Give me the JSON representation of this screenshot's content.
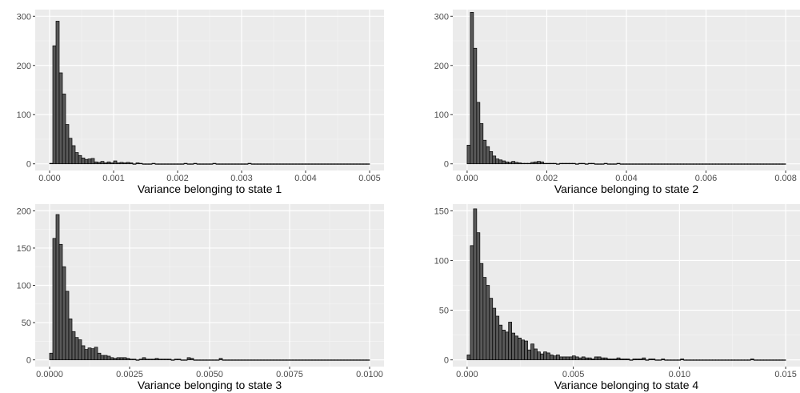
{
  "chart_data": [
    {
      "type": "bar",
      "xlabel": "Variance belonging to state 1",
      "ylabel": "",
      "xlim": [
        0,
        0.005
      ],
      "ylim": [
        0,
        300
      ],
      "x_ticks": [
        0,
        0.001,
        0.002,
        0.003,
        0.004,
        0.005
      ],
      "x_tick_labels": [
        "0.000",
        "0.001",
        "0.002",
        "0.003",
        "0.004",
        "0.005"
      ],
      "y_ticks": [
        0,
        100,
        200,
        300
      ],
      "y_tick_labels": [
        "0",
        "100",
        "200",
        "300"
      ],
      "bin_width": 5e-05,
      "bin_start": 0,
      "values": [
        1,
        240,
        290,
        185,
        142,
        80,
        52,
        37,
        23,
        17,
        12,
        9,
        10,
        11,
        4,
        3,
        5,
        2,
        4,
        2,
        6,
        2,
        3,
        2,
        3,
        2,
        0,
        2,
        1,
        0,
        0,
        0,
        1,
        0,
        0,
        0,
        0,
        0,
        0,
        0,
        0,
        0,
        1,
        0,
        0,
        1,
        0,
        0,
        0,
        0,
        0,
        1,
        0,
        0,
        0,
        0,
        0,
        0,
        0,
        0,
        0,
        0,
        1,
        0,
        0,
        0,
        0,
        0,
        0,
        0,
        0,
        0,
        0,
        0,
        0,
        0,
        0,
        0,
        0,
        0,
        0,
        0,
        0,
        0,
        0,
        0,
        0,
        0,
        0,
        0,
        0,
        0,
        0,
        0,
        0,
        0,
        0,
        0,
        0,
        0
      ]
    },
    {
      "type": "bar",
      "xlabel": "Variance belonging to state 2",
      "ylabel": "",
      "xlim": [
        0,
        0.008
      ],
      "ylim": [
        0,
        300
      ],
      "x_ticks": [
        0,
        0.002,
        0.004,
        0.006,
        0.008
      ],
      "x_tick_labels": [
        "0.000",
        "0.002",
        "0.004",
        "0.006",
        "0.008"
      ],
      "y_ticks": [
        0,
        100,
        200,
        300
      ],
      "y_tick_labels": [
        "0",
        "100",
        "200",
        "300"
      ],
      "bin_width": 8e-05,
      "bin_start": 0,
      "values": [
        38,
        308,
        235,
        125,
        82,
        48,
        35,
        25,
        16,
        10,
        8,
        6,
        4,
        3,
        5,
        3,
        2,
        1,
        1,
        1,
        3,
        4,
        5,
        4,
        1,
        1,
        1,
        1,
        0,
        1,
        1,
        1,
        1,
        1,
        0,
        1,
        1,
        0,
        1,
        1,
        0,
        0,
        0,
        1,
        0,
        0,
        0,
        1,
        0,
        0,
        0,
        0,
        0,
        0,
        0,
        0,
        0,
        0,
        0,
        0,
        0,
        0,
        0,
        0,
        0,
        0,
        0,
        0,
        0,
        0,
        0,
        0,
        0,
        0,
        0,
        0,
        0,
        0,
        0,
        0,
        0,
        0,
        0,
        0,
        0,
        0,
        0,
        0,
        0,
        0,
        0,
        0,
        0,
        0,
        0,
        0,
        0,
        0,
        0,
        0
      ]
    },
    {
      "type": "bar",
      "xlabel": "Variance belonging to state 3",
      "ylabel": "",
      "xlim": [
        0,
        0.01
      ],
      "ylim": [
        0,
        200
      ],
      "x_ticks": [
        0,
        0.0025,
        0.005,
        0.0075,
        0.01
      ],
      "x_tick_labels": [
        "0.0000",
        "0.0025",
        "0.0050",
        "0.0075",
        "0.0100"
      ],
      "y_ticks": [
        0,
        50,
        100,
        150,
        200
      ],
      "y_tick_labels": [
        "0",
        "50",
        "100",
        "150",
        "200"
      ],
      "bin_width": 0.0001,
      "bin_start": 0,
      "values": [
        9,
        163,
        195,
        155,
        125,
        92,
        55,
        38,
        30,
        27,
        19,
        14,
        16,
        15,
        17,
        9,
        6,
        6,
        5,
        3,
        2,
        3,
        3,
        3,
        2,
        1,
        1,
        0,
        1,
        3,
        1,
        1,
        1,
        2,
        1,
        1,
        1,
        1,
        0,
        1,
        1,
        0,
        0,
        3,
        2,
        0,
        0,
        0,
        0,
        0,
        0,
        0,
        0,
        2,
        0,
        0,
        0,
        0,
        0,
        0,
        0,
        0,
        0,
        0,
        0,
        0,
        0,
        0,
        0,
        0,
        0,
        0,
        0,
        0,
        0,
        0,
        0,
        0,
        0,
        0,
        0,
        0,
        0,
        0,
        0,
        0,
        0,
        0,
        0,
        0,
        0,
        0,
        0,
        0,
        0,
        0,
        0,
        0,
        0,
        0
      ]
    },
    {
      "type": "bar",
      "xlabel": "Variance belonging to state 4",
      "ylabel": "",
      "xlim": [
        0,
        0.015
      ],
      "ylim": [
        0,
        150
      ],
      "x_ticks": [
        0,
        0.005,
        0.01,
        0.015
      ],
      "x_tick_labels": [
        "0.000",
        "0.005",
        "0.010",
        "0.015"
      ],
      "y_ticks": [
        0,
        50,
        100,
        150
      ],
      "y_tick_labels": [
        "0",
        "50",
        "100",
        "150"
      ],
      "bin_width": 0.00015,
      "bin_start": 0,
      "values": [
        5,
        115,
        152,
        128,
        97,
        83,
        75,
        62,
        52,
        44,
        35,
        30,
        28,
        38,
        27,
        24,
        22,
        20,
        19,
        10,
        16,
        11,
        8,
        6,
        8,
        7,
        5,
        4,
        5,
        3,
        3,
        3,
        3,
        4,
        3,
        2,
        3,
        2,
        2,
        1,
        3,
        3,
        2,
        2,
        1,
        1,
        1,
        2,
        1,
        1,
        1,
        0,
        1,
        1,
        1,
        2,
        0,
        1,
        1,
        0,
        0,
        1,
        0,
        0,
        0,
        0,
        0,
        1,
        0,
        0,
        0,
        0,
        0,
        0,
        0,
        0,
        0,
        0,
        0,
        0,
        0,
        0,
        0,
        0,
        0,
        0,
        0,
        0,
        0,
        1,
        0,
        0,
        0,
        0,
        0,
        0,
        0,
        0,
        0,
        0
      ]
    }
  ]
}
